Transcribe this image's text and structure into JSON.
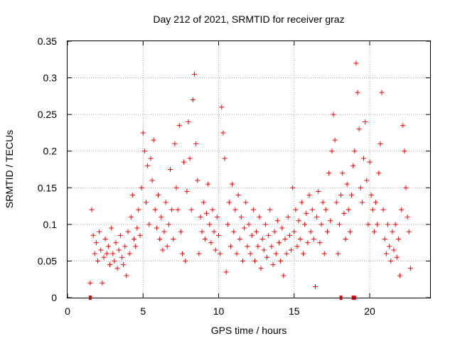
{
  "chart_data": {
    "type": "scatter",
    "title": "Day 212 of 2021, SRMTID for receiver graz",
    "xlabel": "GPS time / hours",
    "ylabel": "SRMTID / TECUs",
    "xlim": [
      0,
      24
    ],
    "ylim": [
      0,
      0.35
    ],
    "x_ticks": [
      0,
      5,
      10,
      15,
      20
    ],
    "y_ticks": [
      0,
      0.05,
      0.1,
      0.15,
      0.2,
      0.25,
      0.3,
      0.35
    ],
    "x_tick_labels": [
      "0",
      "5",
      "10",
      "15",
      "20"
    ],
    "y_tick_labels": [
      "0",
      "0.05",
      "0.1",
      "0.15",
      "0.2",
      "0.25",
      "0.3",
      "0.35"
    ],
    "grid": true,
    "color": "#ff0000",
    "marker": "plus",
    "series": [
      {
        "name": "SRMTID",
        "points": [
          [
            1.5,
            0.02
          ],
          [
            1.6,
            0.12
          ],
          [
            1.7,
            0.085
          ],
          [
            1.8,
            0.06
          ],
          [
            1.9,
            0.075
          ],
          [
            2.0,
            0.05
          ],
          [
            2.1,
            0.09
          ],
          [
            2.2,
            0.065
          ],
          [
            2.3,
            0.02
          ],
          [
            2.4,
            0.055
          ],
          [
            2.5,
            0.08
          ],
          [
            2.6,
            0.06
          ],
          [
            2.7,
            0.07
          ],
          [
            2.8,
            0.045
          ],
          [
            2.9,
            0.095
          ],
          [
            3.0,
            0.06
          ],
          [
            3.1,
            0.05
          ],
          [
            3.2,
            0.075
          ],
          [
            3.3,
            0.04
          ],
          [
            3.4,
            0.065
          ],
          [
            3.5,
            0.085
          ],
          [
            3.6,
            0.055
          ],
          [
            3.7,
            0.045
          ],
          [
            3.8,
            0.07
          ],
          [
            3.9,
            0.03
          ],
          [
            4.0,
            0.09
          ],
          [
            4.1,
            0.06
          ],
          [
            4.2,
            0.11
          ],
          [
            4.3,
            0.14
          ],
          [
            4.4,
            0.08
          ],
          [
            4.5,
            0.07
          ],
          [
            4.6,
            0.095
          ],
          [
            4.7,
            0.12
          ],
          [
            4.8,
            0.085
          ],
          [
            4.9,
            0.15
          ],
          [
            5.0,
            0.225
          ],
          [
            5.1,
            0.2
          ],
          [
            5.2,
            0.13
          ],
          [
            5.3,
            0.18
          ],
          [
            5.4,
            0.1
          ],
          [
            5.5,
            0.19
          ],
          [
            5.6,
            0.16
          ],
          [
            5.7,
            0.215
          ],
          [
            5.8,
            0.12
          ],
          [
            5.9,
            0.095
          ],
          [
            6.0,
            0.14
          ],
          [
            6.1,
            0.08
          ],
          [
            6.2,
            0.11
          ],
          [
            6.3,
            0.065
          ],
          [
            6.4,
            0.09
          ],
          [
            6.5,
            0.13
          ],
          [
            6.6,
            0.07
          ],
          [
            6.7,
            0.1
          ],
          [
            6.8,
            0.175
          ],
          [
            6.9,
            0.12
          ],
          [
            7.0,
            0.08
          ],
          [
            7.1,
            0.21
          ],
          [
            7.2,
            0.15
          ],
          [
            7.3,
            0.12
          ],
          [
            7.4,
            0.235
          ],
          [
            7.5,
            0.09
          ],
          [
            7.6,
            0.06
          ],
          [
            7.7,
            0.185
          ],
          [
            7.8,
            0.05
          ],
          [
            7.9,
            0.145
          ],
          [
            8.0,
            0.24
          ],
          [
            8.1,
            0.19
          ],
          [
            8.2,
            0.12
          ],
          [
            8.3,
            0.27
          ],
          [
            8.4,
            0.305
          ],
          [
            8.5,
            0.21
          ],
          [
            8.6,
            0.16
          ],
          [
            8.7,
            0.06
          ],
          [
            8.8,
            0.11
          ],
          [
            8.9,
            0.09
          ],
          [
            9.0,
            0.13
          ],
          [
            9.1,
            0.08
          ],
          [
            9.2,
            0.115
          ],
          [
            9.3,
            0.155
          ],
          [
            9.4,
            0.1
          ],
          [
            9.5,
            0.075
          ],
          [
            9.6,
            0.12
          ],
          [
            9.7,
            0.09
          ],
          [
            9.8,
            0.065
          ],
          [
            9.9,
            0.11
          ],
          [
            10.0,
            0.085
          ],
          [
            10.1,
            0.06
          ],
          [
            10.2,
            0.26
          ],
          [
            10.3,
            0.225
          ],
          [
            10.4,
            0.19
          ],
          [
            10.5,
            0.035
          ],
          [
            10.6,
            0.1
          ],
          [
            10.7,
            0.13
          ],
          [
            10.8,
            0.07
          ],
          [
            10.9,
            0.155
          ],
          [
            11.0,
            0.09
          ],
          [
            11.1,
            0.12
          ],
          [
            11.2,
            0.06
          ],
          [
            11.3,
            0.14
          ],
          [
            11.4,
            0.08
          ],
          [
            11.5,
            0.11
          ],
          [
            11.6,
            0.05
          ],
          [
            11.7,
            0.095
          ],
          [
            11.8,
            0.13
          ],
          [
            11.9,
            0.07
          ],
          [
            12.0,
            0.1
          ],
          [
            12.1,
            0.06
          ],
          [
            12.2,
            0.085
          ],
          [
            12.3,
            0.12
          ],
          [
            12.4,
            0.05
          ],
          [
            12.5,
            0.09
          ],
          [
            12.6,
            0.07
          ],
          [
            12.7,
            0.11
          ],
          [
            12.8,
            0.04
          ],
          [
            12.9,
            0.08
          ],
          [
            13.0,
            0.065
          ],
          [
            13.1,
            0.1
          ],
          [
            13.2,
            0.055
          ],
          [
            13.3,
            0.085
          ],
          [
            13.4,
            0.12
          ],
          [
            13.5,
            0.07
          ],
          [
            13.6,
            0.045
          ],
          [
            13.7,
            0.09
          ],
          [
            13.8,
            0.06
          ],
          [
            13.9,
            0.105
          ],
          [
            14.0,
            0.075
          ],
          [
            14.1,
            0.05
          ],
          [
            14.2,
            0.095
          ],
          [
            14.3,
            0.03
          ],
          [
            14.4,
            0.08
          ],
          [
            14.5,
            0.06
          ],
          [
            14.6,
            0.11
          ],
          [
            14.7,
            0.085
          ],
          [
            14.8,
            0.065
          ],
          [
            14.9,
            0.15
          ],
          [
            15.0,
            0.09
          ],
          [
            15.1,
            0.12
          ],
          [
            15.2,
            0.07
          ],
          [
            15.3,
            0.105
          ],
          [
            15.4,
            0.08
          ],
          [
            15.5,
            0.13
          ],
          [
            15.6,
            0.06
          ],
          [
            15.7,
            0.1
          ],
          [
            15.8,
            0.115
          ],
          [
            15.9,
            0.075
          ],
          [
            16.0,
            0.14
          ],
          [
            16.1,
            0.09
          ],
          [
            16.2,
            0.12
          ],
          [
            16.3,
            0.08
          ],
          [
            16.4,
            0.015
          ],
          [
            16.5,
            0.11
          ],
          [
            16.6,
            0.145
          ],
          [
            16.7,
            0.075
          ],
          [
            16.8,
            0.1
          ],
          [
            16.9,
            0.13
          ],
          [
            17.0,
            0.06
          ],
          [
            17.1,
            0.12
          ],
          [
            17.2,
            0.09
          ],
          [
            17.3,
            0.17
          ],
          [
            17.4,
            0.105
          ],
          [
            17.5,
            0.2
          ],
          [
            17.6,
            0.25
          ],
          [
            17.7,
            0.215
          ],
          [
            17.8,
            0.13
          ],
          [
            17.9,
            0.06
          ],
          [
            18.0,
            0.1
          ],
          [
            18.1,
            0.14
          ],
          [
            18.2,
            0.17
          ],
          [
            18.3,
            0.115
          ],
          [
            18.4,
            0.08
          ],
          [
            18.5,
            0.155
          ],
          [
            18.6,
            0.12
          ],
          [
            18.7,
            0.09
          ],
          [
            18.8,
            0.14
          ],
          [
            18.9,
            0.18
          ],
          [
            19.0,
            0.2
          ],
          [
            19.1,
            0.32
          ],
          [
            19.2,
            0.28
          ],
          [
            19.3,
            0.23
          ],
          [
            19.4,
            0.15
          ],
          [
            19.5,
            0.13
          ],
          [
            19.6,
            0.19
          ],
          [
            19.7,
            0.24
          ],
          [
            19.8,
            0.16
          ],
          [
            19.9,
            0.1
          ],
          [
            20.0,
            0.185
          ],
          [
            20.1,
            0.14
          ],
          [
            20.2,
            0.12
          ],
          [
            20.3,
            0.09
          ],
          [
            20.4,
            0.13
          ],
          [
            20.5,
            0.1
          ],
          [
            20.6,
            0.17
          ],
          [
            20.7,
            0.21
          ],
          [
            20.8,
            0.28
          ],
          [
            20.9,
            0.12
          ],
          [
            21.0,
            0.08
          ],
          [
            21.1,
            0.06
          ],
          [
            21.2,
            0.1
          ],
          [
            21.3,
            0.07
          ],
          [
            21.4,
            0.05
          ],
          [
            21.5,
            0.09
          ],
          [
            21.6,
            0.065
          ],
          [
            21.7,
            0.1
          ],
          [
            21.8,
            0.055
          ],
          [
            21.9,
            0.08
          ],
          [
            22.0,
            0.03
          ],
          [
            22.1,
            0.12
          ],
          [
            22.2,
            0.235
          ],
          [
            22.3,
            0.2
          ],
          [
            22.4,
            0.15
          ],
          [
            22.5,
            0.11
          ],
          [
            22.6,
            0.09
          ],
          [
            22.7,
            0.04
          ]
        ]
      },
      {
        "name": "zero-markers",
        "points": [
          [
            1.5,
            0.0
          ],
          [
            18.1,
            0.0
          ],
          [
            18.9,
            0.0
          ],
          [
            19.0,
            0.0
          ]
        ]
      }
    ]
  }
}
